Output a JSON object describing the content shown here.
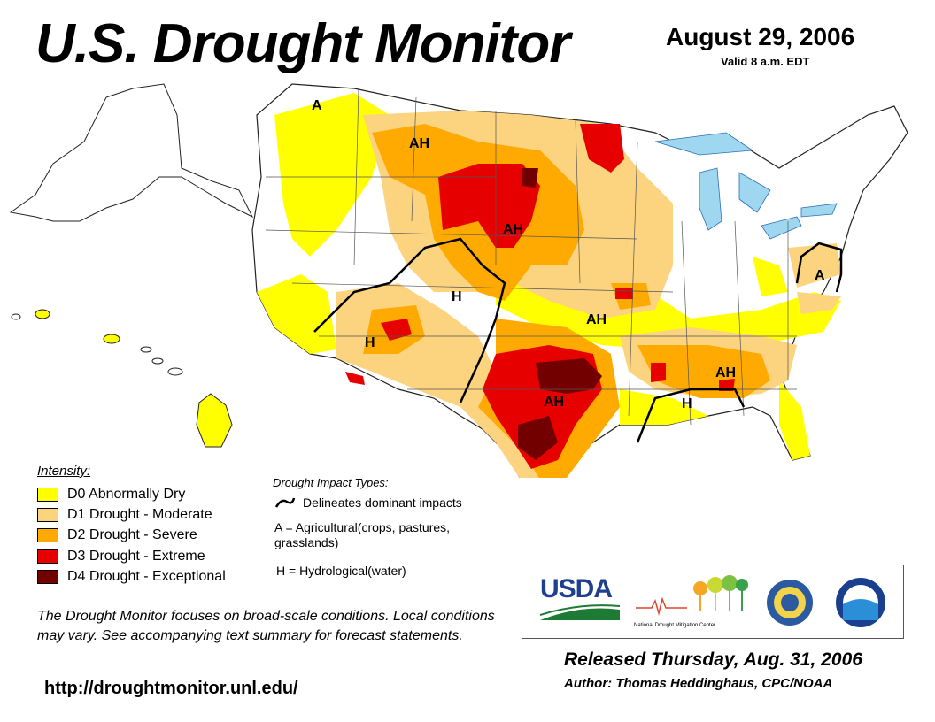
{
  "header": {
    "title": "U.S. Drought Monitor",
    "date": "August 29, 2006",
    "valid": "Valid 8 a.m. EDT"
  },
  "legend": {
    "heading": "Intensity:",
    "items": [
      {
        "label": "D0 Abnormally Dry",
        "color": "#ffff00"
      },
      {
        "label": "D1 Drought - Moderate",
        "color": "#fcd37f"
      },
      {
        "label": "D2 Drought - Severe",
        "color": "#ffaa00"
      },
      {
        "label": "D3 Drought - Extreme",
        "color": "#e60000"
      },
      {
        "label": "D4 Drought - Exceptional",
        "color": "#730000"
      }
    ]
  },
  "impacts": {
    "heading": "Drought Impact Types:",
    "line": "Delineates dominant impacts",
    "a": "A = Agricultural(crops, pastures, grasslands)",
    "h": "H = Hydrological(water)"
  },
  "map_labels": [
    "A",
    "AH",
    "AH",
    "H",
    "AH",
    "H",
    "AH",
    "AH",
    "H",
    "A"
  ],
  "disclaimer": "The Drought Monitor focuses on broad-scale conditions. Local conditions may vary. See accompanying text summary for forecast statements.",
  "url": "http://droughtmonitor.unl.edu/",
  "logos": {
    "usda": "USDA",
    "ndmc": "National Drought Mitigation Center"
  },
  "released": "Released Thursday, Aug. 31, 2006",
  "author": "Author: Thomas Heddinghaus, CPC/NOAA"
}
